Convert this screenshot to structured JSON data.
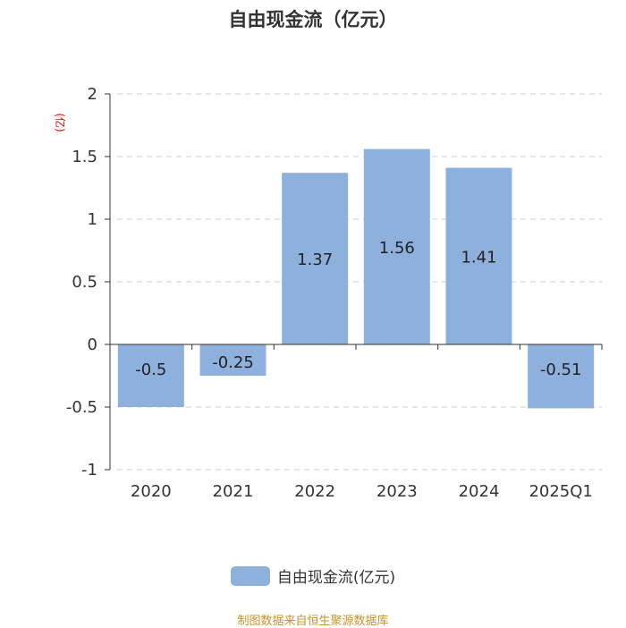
{
  "chart_data": {
    "type": "bar",
    "title": "自由现金流（亿元）",
    "ylabel": "(亿)",
    "categories": [
      "2020",
      "2021",
      "2022",
      "2023",
      "2024",
      "2025Q1"
    ],
    "series": [
      {
        "name": "自由现金流(亿元)",
        "values": [
          -0.5,
          -0.25,
          1.37,
          1.56,
          1.41,
          -0.51
        ]
      }
    ],
    "value_labels": [
      "-0.5",
      "-0.25",
      "1.37",
      "1.56",
      "1.41",
      "-0.51"
    ],
    "ylim": [
      -1,
      2
    ],
    "yticks": [
      2,
      1.5,
      1,
      0.5,
      0,
      -0.5,
      -1
    ],
    "ytick_labels": [
      "2",
      "1.5",
      "1",
      "0.5",
      "0",
      "-0.5",
      "-1"
    ],
    "grid": true,
    "legend_position": "bottom",
    "bar_color": "#8eb0dc"
  },
  "footer": {
    "source": "制图数据来自恒生聚源数据库"
  }
}
